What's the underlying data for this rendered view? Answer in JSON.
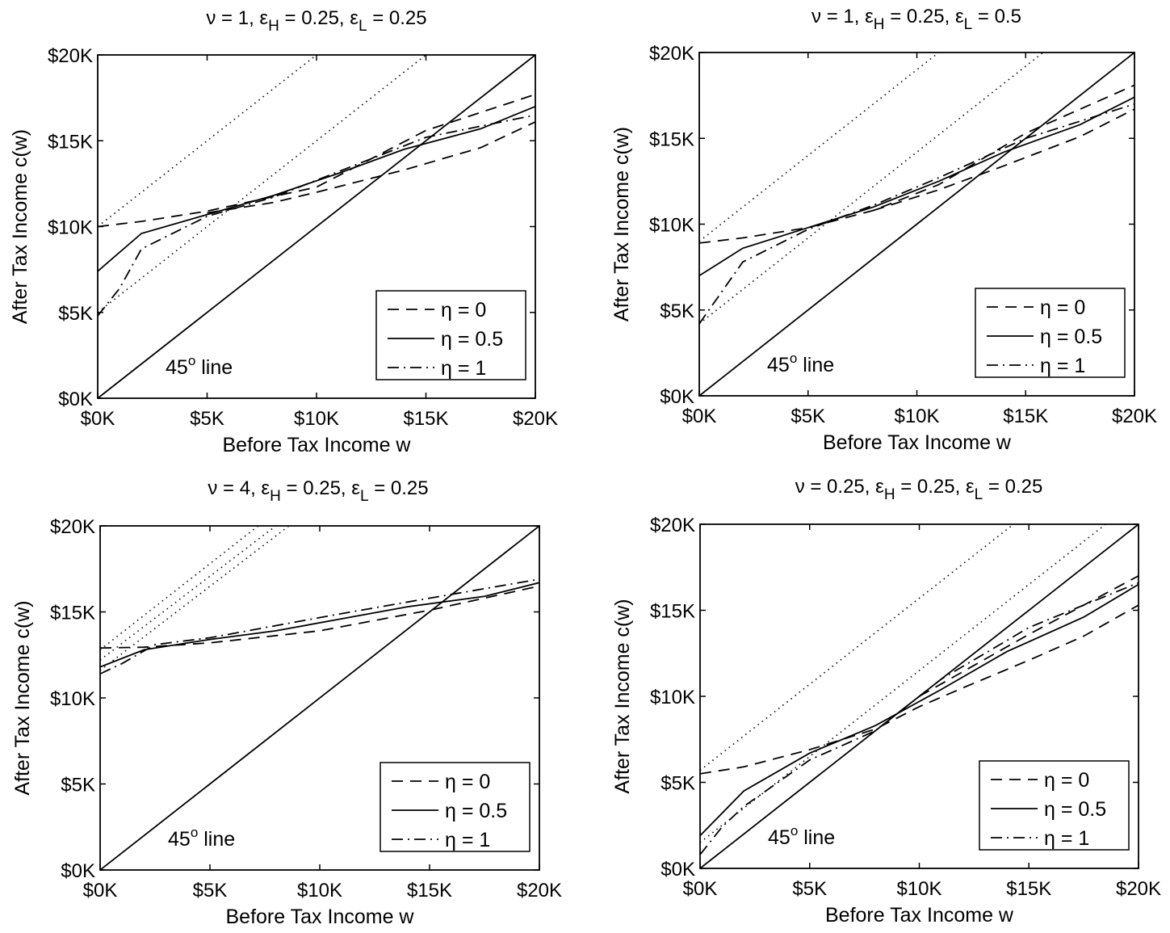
{
  "chart_data": [
    {
      "type": "line",
      "title": "ν = 1, ε_H = 0.25, ε_L = 0.25",
      "title_parts": {
        "nu": "ν = 1,",
        "eps_h": "ε",
        "eps_h_sub": "H",
        "eps_h_val": "= 0.25,",
        "eps_l": "ε",
        "eps_l_sub": "L",
        "eps_l_val": "= 0.25"
      },
      "xlabel": "Before Tax Income w",
      "ylabel": "After Tax Income c(w)",
      "xlim": [
        0,
        20000
      ],
      "ylim": [
        0,
        20000
      ],
      "xticks": [
        "$0K",
        "$5K",
        "$10K",
        "$15K",
        "$20K"
      ],
      "yticks": [
        "$0K",
        "$5K",
        "$10K",
        "$15K",
        "$20K"
      ],
      "annotation": {
        "text": "45",
        "sup": "o",
        "rest": " line"
      },
      "legend_position": "bottom-right",
      "legend": [
        "η = 0",
        "η = 0.5",
        "η = 1"
      ],
      "series": [
        {
          "name": "η = 0",
          "style": "dashed",
          "x": [
            0,
            2000,
            5000,
            10000,
            15000,
            20000
          ],
          "y": [
            10000,
            10300,
            10900,
            12300,
            15600,
            17700
          ]
        },
        {
          "name": "η = 0",
          "style": "dashed",
          "x": [
            5000,
            8000,
            10000,
            14000,
            17500,
            20000
          ],
          "y": [
            10800,
            11400,
            12000,
            13300,
            14600,
            16100
          ]
        },
        {
          "name": "η = 0.5",
          "style": "solid",
          "x": [
            0,
            2000,
            5000,
            8000,
            11000,
            14000,
            17500,
            20000
          ],
          "y": [
            7400,
            9600,
            10700,
            11800,
            13100,
            14500,
            15700,
            17000
          ]
        },
        {
          "name": "η = 1",
          "style": "dashdot",
          "x": [
            0,
            1000,
            2000,
            5000,
            8000,
            11000,
            15000,
            20000
          ],
          "y": [
            4800,
            6400,
            8700,
            10600,
            11700,
            13200,
            15200,
            16500
          ]
        },
        {
          "name": "45° line",
          "style": "solid",
          "x": [
            0,
            20000
          ],
          "y": [
            0,
            20000
          ]
        },
        {
          "name": "",
          "style": "dotted",
          "x": [
            0,
            10000
          ],
          "y": [
            10000,
            20000
          ]
        },
        {
          "name": "",
          "style": "dotted",
          "x": [
            0,
            15000
          ],
          "y": [
            5000,
            20000
          ]
        }
      ]
    },
    {
      "type": "line",
      "title": "ν = 1, ε_H = 0.25, ε_L = 0.5",
      "title_parts": {
        "nu": "ν = 1,",
        "eps_h": "ε",
        "eps_h_sub": "H",
        "eps_h_val": "= 0.25,",
        "eps_l": "ε",
        "eps_l_sub": "L",
        "eps_l_val": "= 0.5"
      },
      "xlabel": "Before Tax Income w",
      "ylabel": "After Tax Income c(w)",
      "xlim": [
        0,
        20000
      ],
      "ylim": [
        0,
        20000
      ],
      "xticks": [
        "$0K",
        "$5K",
        "$10K",
        "$15K",
        "$20K"
      ],
      "yticks": [
        "$0K",
        "$5K",
        "$10K",
        "$15K",
        "$20K"
      ],
      "annotation": {
        "text": "45",
        "sup": "o",
        "rest": " line"
      },
      "legend_position": "bottom-right",
      "legend": [
        "η = 0",
        "η = 0.5",
        "η = 1"
      ],
      "series": [
        {
          "name": "η = 0",
          "style": "dashed",
          "x": [
            0,
            2000,
            5000,
            8000,
            11000,
            15000,
            20000
          ],
          "y": [
            8900,
            9200,
            9800,
            10800,
            12300,
            15300,
            18100
          ]
        },
        {
          "name": "η = 0",
          "style": "dashed",
          "x": [
            8000,
            11000,
            14000,
            17500,
            20000
          ],
          "y": [
            10800,
            12000,
            13400,
            15100,
            16700
          ]
        },
        {
          "name": "η = 0.5",
          "style": "solid",
          "x": [
            0,
            2000,
            5000,
            8000,
            11000,
            14000,
            17500,
            20000
          ],
          "y": [
            7000,
            8600,
            9800,
            11000,
            12500,
            14200,
            15800,
            17400
          ]
        },
        {
          "name": "η = 1",
          "style": "dashdot",
          "x": [
            0,
            1000,
            2000,
            5000,
            8000,
            11000,
            15000,
            20000
          ],
          "y": [
            4200,
            6000,
            7800,
            9700,
            11100,
            12700,
            15000,
            17000
          ]
        },
        {
          "name": "45° line",
          "style": "solid",
          "x": [
            0,
            20000
          ],
          "y": [
            0,
            20000
          ]
        },
        {
          "name": "",
          "style": "dotted",
          "x": [
            0,
            11000
          ],
          "y": [
            9000,
            20000
          ]
        },
        {
          "name": "",
          "style": "dotted",
          "x": [
            0,
            15800
          ],
          "y": [
            4200,
            20000
          ]
        }
      ]
    },
    {
      "type": "line",
      "title": "ν = 4, ε_H = 0.25, ε_L = 0.25",
      "title_parts": {
        "nu": "ν = 4,",
        "eps_h": "ε",
        "eps_h_sub": "H",
        "eps_h_val": "= 0.25,",
        "eps_l": "ε",
        "eps_l_sub": "L",
        "eps_l_val": "= 0.25"
      },
      "xlabel": "Before Tax Income w",
      "ylabel": "After Tax Income c(w)",
      "xlim": [
        0,
        20000
      ],
      "ylim": [
        0,
        20000
      ],
      "xticks": [
        "$0K",
        "$5K",
        "$10K",
        "$15K",
        "$20K"
      ],
      "yticks": [
        "$0K",
        "$5K",
        "$10K",
        "$15K",
        "$20K"
      ],
      "annotation": {
        "text": "45",
        "sup": "o",
        "rest": " line"
      },
      "legend_position": "bottom-right",
      "legend": [
        "η = 0",
        "η = 0.5",
        "η = 1"
      ],
      "series": [
        {
          "name": "η = 0",
          "style": "dashed",
          "x": [
            0,
            2000,
            5000,
            10000,
            15000,
            20000
          ],
          "y": [
            12900,
            12950,
            13200,
            13900,
            15100,
            16500
          ]
        },
        {
          "name": "η = 0.5",
          "style": "solid",
          "x": [
            0,
            2000,
            5000,
            8000,
            11000,
            14000,
            17500,
            20000
          ],
          "y": [
            11800,
            12800,
            13400,
            13900,
            14600,
            15300,
            15900,
            16700
          ]
        },
        {
          "name": "η = 1",
          "style": "dashdot",
          "x": [
            0,
            1000,
            2500,
            5000,
            8000,
            11000,
            15000,
            20000
          ],
          "y": [
            11400,
            12000,
            13100,
            13500,
            14200,
            14900,
            15800,
            16900
          ]
        },
        {
          "name": "45° line",
          "style": "solid",
          "x": [
            0,
            20000
          ],
          "y": [
            0,
            20000
          ]
        },
        {
          "name": "",
          "style": "dotted",
          "x": [
            0,
            7200
          ],
          "y": [
            12800,
            20000
          ]
        },
        {
          "name": "",
          "style": "dotted",
          "x": [
            0,
            8000
          ],
          "y": [
            12200,
            20000
          ]
        },
        {
          "name": "",
          "style": "dotted",
          "x": [
            0,
            8600
          ],
          "y": [
            11600,
            20000
          ]
        }
      ]
    },
    {
      "type": "line",
      "title": "ν = 0.25, ε_H = 0.25, ε_L = 0.25",
      "title_parts": {
        "nu": "ν = 0.25,",
        "eps_h": "ε",
        "eps_h_sub": "H",
        "eps_h_val": "= 0.25,",
        "eps_l": "ε",
        "eps_l_sub": "L",
        "eps_l_val": "= 0.25"
      },
      "xlabel": "Before Tax Income w",
      "ylabel": "After Tax Income c(w)",
      "xlim": [
        0,
        20000
      ],
      "ylim": [
        0,
        20000
      ],
      "xticks": [
        "$0K",
        "$5K",
        "$10K",
        "$15K",
        "$20K"
      ],
      "yticks": [
        "$0K",
        "$5K",
        "$10K",
        "$15K",
        "$20K"
      ],
      "annotation": {
        "text": "45",
        "sup": "o",
        "rest": " line"
      },
      "legend_position": "bottom-right",
      "legend": [
        "η = 0",
        "η = 0.5",
        "η = 1"
      ],
      "series": [
        {
          "name": "η = 0",
          "style": "dashed",
          "x": [
            0,
            2000,
            5000,
            8000,
            10000,
            12000,
            15000,
            17500,
            20000
          ],
          "y": [
            5500,
            5900,
            6900,
            8100,
            9400,
            10500,
            12100,
            13500,
            15300
          ]
        },
        {
          "name": "η = 0",
          "style": "dashed",
          "x": [
            10000,
            15000,
            20000
          ],
          "y": [
            10000,
            13600,
            17000
          ]
        },
        {
          "name": "η = 0.5",
          "style": "solid",
          "x": [
            0,
            2000,
            5000,
            8000,
            11000,
            14000,
            17500,
            20000
          ],
          "y": [
            1900,
            4500,
            6700,
            8300,
            10400,
            12600,
            14600,
            16500
          ]
        },
        {
          "name": "η = 1",
          "style": "dashdot",
          "x": [
            0,
            1000,
            2000,
            5000,
            8000,
            11000,
            15000,
            20000
          ],
          "y": [
            800,
            2400,
            3600,
            6300,
            8000,
            11000,
            14000,
            16600
          ]
        },
        {
          "name": "45° line",
          "style": "solid",
          "x": [
            0,
            20000
          ],
          "y": [
            0,
            20000
          ]
        },
        {
          "name": "",
          "style": "dotted",
          "x": [
            0,
            14300
          ],
          "y": [
            5700,
            20000
          ]
        },
        {
          "name": "",
          "style": "dotted",
          "x": [
            0,
            18500
          ],
          "y": [
            1500,
            20000
          ]
        }
      ]
    }
  ]
}
